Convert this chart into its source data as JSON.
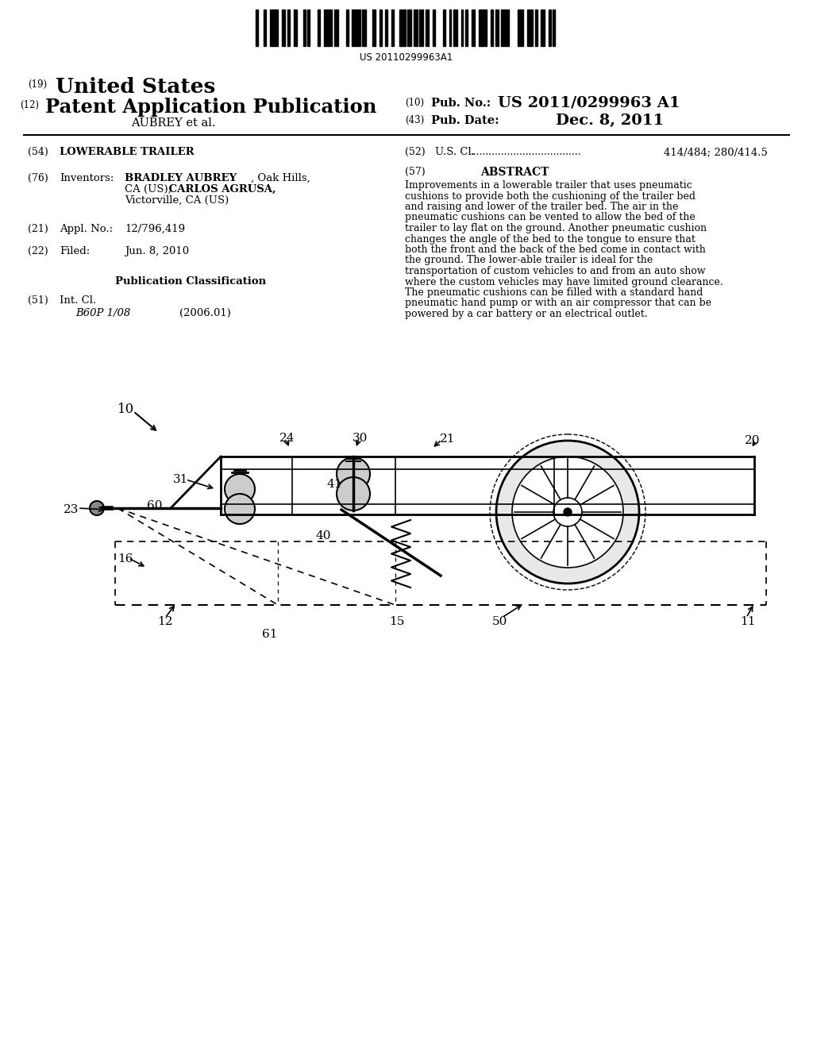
{
  "barcode_text": "US 20110299963A1",
  "label_19": "(19)",
  "united_states": "United States",
  "label_12": "(12)",
  "patent_pub": "Patent Application Publication",
  "aubrey": "AUBREY et al.",
  "label_10": "(10)",
  "pub_no_label": "Pub. No.:",
  "pub_no": "US 2011/0299963 A1",
  "label_43": "(43)",
  "pub_date_label": "Pub. Date:",
  "pub_date": "Dec. 8, 2011",
  "label_54": "(54)",
  "title": "LOWERABLE TRAILER",
  "label_52": "(52)",
  "us_cl_label": "U.S. Cl.",
  "us_cl": "414/484; 280/414.5",
  "label_76": "(76)",
  "inventors_label": "Inventors:",
  "inventor1": "BRADLEY AUBREY",
  "inventor1_loc": ", Oak Hills,",
  "inventor1_loc2": "CA (US);",
  "inventor2": " CARLOS AGRUSA,",
  "inventor2_loc": "Victorville, CA (US)",
  "label_21": "(21)",
  "appl_label": "Appl. No.:",
  "appl_no": "12/796,419",
  "label_22": "(22)",
  "filed_label": "Filed:",
  "filed": "Jun. 8, 2010",
  "pub_class": "Publication Classification",
  "label_51": "(51)",
  "int_cl_label": "Int. Cl.",
  "int_cl": "B60P 1/08",
  "int_cl_date": "(2006.01)",
  "label_57": "(57)",
  "abstract_title": "ABSTRACT",
  "abstract": "Improvements in a lowerable trailer that uses pneumatic cushions to provide both the cushioning of the trailer bed and raising and lower of the trailer bed. The air in the pneumatic cushions can be vented to allow the bed of the trailer to lay flat on the ground. Another pneumatic cushion changes the angle of the bed to the tongue to ensure that both the front and the back of the bed come in contact with the ground. The lower-able trailer is ideal for the transportation of custom vehicles to and from an auto show where the custom vehicles may have limited ground clearance. The pneumatic cushions can be filled with a standard hand pneumatic hand pump or with an air compressor that can be powered by a car battery or an electrical outlet.",
  "bg_color": "#ffffff"
}
